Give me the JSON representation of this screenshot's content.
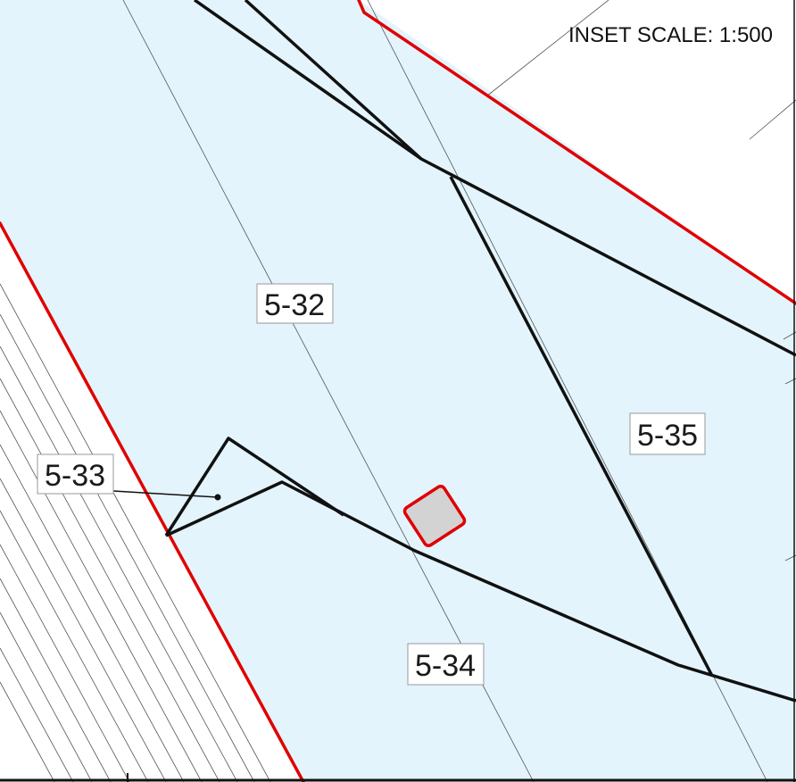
{
  "map": {
    "scale_label": "INSET SCALE: 1:500",
    "colors": {
      "parcel_fill": "#e3f4fd",
      "boundary_red": "#e00000",
      "lot_line": "#111111",
      "thin_line": "#555555",
      "structure_fill": "#d3d3d3",
      "label_border": "#999999"
    },
    "parcels": [
      {
        "id": "5-32",
        "label": "5-32"
      },
      {
        "id": "5-33",
        "label": "5-33"
      },
      {
        "id": "5-34",
        "label": "5-34"
      },
      {
        "id": "5-35",
        "label": "5-35"
      }
    ]
  }
}
